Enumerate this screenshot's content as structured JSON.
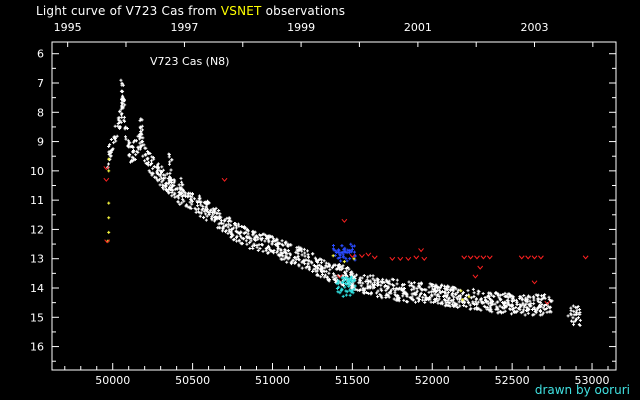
{
  "title": {
    "prefix": "Light curve of V723 Cas from ",
    "highlight": "VSNET",
    "suffix": " observations",
    "highlight_color": "#ffff00"
  },
  "credit": {
    "text": "drawn by ooruri",
    "color": "#40e0e0"
  },
  "colors": {
    "background": "#000000",
    "axes": "#ffffff",
    "visual": "#ffffff",
    "ccd_blue": "#2a4bff",
    "ccd_cyan": "#30e0e0",
    "yellow": "#ffff40",
    "upper_limit": "#ff2020"
  },
  "chart_data": {
    "type": "scatter",
    "annotation": "V723 Cas (N8)",
    "x_bottom": {
      "ticks": [
        50000,
        50500,
        51000,
        51500,
        52000,
        52500,
        53000
      ],
      "tick_labels": [
        "50000",
        "50500",
        "51000",
        "51500",
        "52000",
        "52500",
        "53000"
      ],
      "range": [
        49620,
        53150
      ]
    },
    "x_top": {
      "tick_labels": [
        "1995",
        "1997",
        "1999",
        "2001",
        "2003"
      ],
      "tick_jd": [
        49718,
        50449,
        51179,
        51910,
        52640
      ]
    },
    "y": {
      "range": [
        5.6,
        16.8
      ],
      "inverted": true,
      "ticks": [
        6,
        7,
        8,
        9,
        10,
        11,
        12,
        13,
        14,
        15,
        16
      ],
      "tick_labels": [
        "6",
        "7",
        "8",
        "9",
        "10",
        "11",
        "12",
        "13",
        "14",
        "15",
        "16"
      ]
    },
    "series": [
      {
        "style": "visual",
        "color_key": "visual",
        "marker": "plus",
        "trend": [
          [
            49965,
            9.7
          ],
          [
            49990,
            9.2
          ],
          [
            50010,
            8.9
          ],
          [
            50040,
            8.4
          ],
          [
            50065,
            7.9
          ],
          [
            50085,
            8.7
          ],
          [
            50110,
            9.4
          ],
          [
            50140,
            9.3
          ],
          [
            50175,
            8.9
          ],
          [
            50200,
            9.5
          ],
          [
            50260,
            9.9
          ],
          [
            50320,
            10.3
          ],
          [
            50420,
            10.8
          ],
          [
            50520,
            11.1
          ],
          [
            50600,
            11.4
          ],
          [
            50700,
            11.8
          ],
          [
            50800,
            12.2
          ],
          [
            50900,
            12.4
          ],
          [
            51000,
            12.6
          ],
          [
            51100,
            12.8
          ],
          [
            51200,
            13.0
          ],
          [
            51300,
            13.3
          ],
          [
            51400,
            13.5
          ],
          [
            51500,
            13.7
          ],
          [
            51600,
            13.9
          ],
          [
            51700,
            14.0
          ],
          [
            51800,
            14.1
          ],
          [
            52000,
            14.2
          ],
          [
            52200,
            14.35
          ],
          [
            52400,
            14.5
          ],
          [
            52600,
            14.6
          ],
          [
            52750,
            14.55
          ]
        ],
        "scatter_mag": 0.35,
        "peaks": [
          [
            50060,
            6.9
          ],
          [
            50065,
            7.4
          ],
          [
            50180,
            8.1
          ],
          [
            50360,
            9.4
          ],
          [
            50430,
            10.2
          ]
        ],
        "late_cluster": {
          "x_range": [
            52850,
            52930
          ],
          "mag_range": [
            14.6,
            15.3
          ]
        }
      },
      {
        "style": "ccd_blue",
        "color_key": "ccd_blue",
        "marker": "plus",
        "x_range": [
          51380,
          51520
        ],
        "mag_range": [
          12.5,
          13.1
        ]
      },
      {
        "style": "ccd_cyan",
        "color_key": "ccd_cyan",
        "marker": "plus",
        "x_range": [
          51400,
          51520
        ],
        "mag_range": [
          13.6,
          14.3
        ]
      },
      {
        "style": "yellow",
        "color_key": "yellow",
        "marker": "plus",
        "points": [
          [
            49975,
            9.6
          ],
          [
            49975,
            10.0
          ],
          [
            49975,
            11.1
          ],
          [
            49975,
            11.6
          ],
          [
            49975,
            12.1
          ],
          [
            49970,
            12.4
          ],
          [
            51450,
            13.1
          ],
          [
            51510,
            13.0
          ],
          [
            51380,
            12.9
          ],
          [
            52190,
            14.4
          ],
          [
            52230,
            14.3
          ],
          [
            52180,
            14.1
          ]
        ]
      },
      {
        "style": "upper_limit",
        "color_key": "upper_limit",
        "marker": "v",
        "points": [
          [
            49960,
            9.9
          ],
          [
            49960,
            10.3
          ],
          [
            49965,
            12.4
          ],
          [
            50700,
            10.3
          ],
          [
            51450,
            11.7
          ],
          [
            51500,
            12.9
          ],
          [
            51560,
            12.9
          ],
          [
            51600,
            12.85
          ],
          [
            51640,
            12.95
          ],
          [
            51750,
            13.0
          ],
          [
            51800,
            13.0
          ],
          [
            51850,
            13.0
          ],
          [
            51900,
            12.95
          ],
          [
            51950,
            13.0
          ],
          [
            51930,
            12.7
          ],
          [
            52200,
            12.95
          ],
          [
            52240,
            12.95
          ],
          [
            52280,
            12.95
          ],
          [
            52320,
            12.95
          ],
          [
            52360,
            12.95
          ],
          [
            52300,
            13.3
          ],
          [
            52270,
            13.6
          ],
          [
            52560,
            12.95
          ],
          [
            52600,
            12.95
          ],
          [
            52640,
            12.95
          ],
          [
            52680,
            12.95
          ],
          [
            52640,
            13.8
          ],
          [
            52720,
            14.5
          ],
          [
            52960,
            12.95
          ],
          [
            51420,
            13.6
          ]
        ]
      }
    ]
  }
}
